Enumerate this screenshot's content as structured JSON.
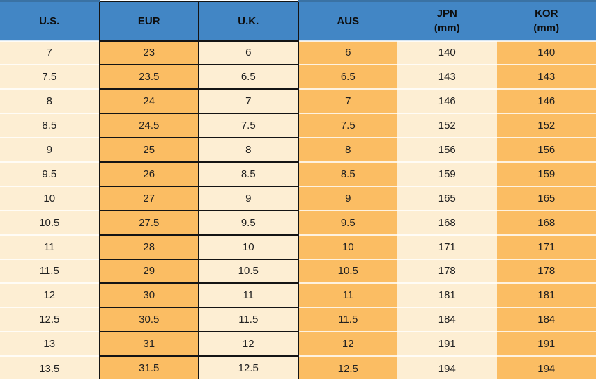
{
  "colors": {
    "header_bg": "#4286c5",
    "header_top_edge": "#3a72a4",
    "cell_cream": "#fdeed3",
    "cell_orange": "#fbbd63",
    "cell_border_black": "#141414",
    "row_separator": "#f8f1e4",
    "text": "#212121"
  },
  "table": {
    "headers": [
      {
        "label": "U.S."
      },
      {
        "label": "EUR"
      },
      {
        "label": "U.K."
      },
      {
        "label": "AUS"
      },
      {
        "label": "JPN",
        "sublabel": "(mm)"
      },
      {
        "label": "KOR",
        "sublabel": "(mm)"
      }
    ],
    "column_fills": [
      "cream",
      "orange",
      "cream",
      "orange",
      "cream",
      "orange"
    ],
    "bordered_columns": [
      1,
      2
    ],
    "rows": [
      [
        "7",
        "23",
        "6",
        "6",
        "140",
        "140"
      ],
      [
        "7.5",
        "23.5",
        "6.5",
        "6.5",
        "143",
        "143"
      ],
      [
        "8",
        "24",
        "7",
        "7",
        "146",
        "146"
      ],
      [
        "8.5",
        "24.5",
        "7.5",
        "7.5",
        "152",
        "152"
      ],
      [
        "9",
        "25",
        "8",
        "8",
        "156",
        "156"
      ],
      [
        "9.5",
        "26",
        "8.5",
        "8.5",
        "159",
        "159"
      ],
      [
        "10",
        "27",
        "9",
        "9",
        "165",
        "165"
      ],
      [
        "10.5",
        "27.5",
        "9.5",
        "9.5",
        "168",
        "168"
      ],
      [
        "11",
        "28",
        "10",
        "10",
        "171",
        "171"
      ],
      [
        "11.5",
        "29",
        "10.5",
        "10.5",
        "178",
        "178"
      ],
      [
        "12",
        "30",
        "11",
        "11",
        "181",
        "181"
      ],
      [
        "12.5",
        "30.5",
        "11.5",
        "11.5",
        "184",
        "184"
      ],
      [
        "13",
        "31",
        "12",
        "12",
        "191",
        "191"
      ],
      [
        "13.5",
        "31.5",
        "12.5",
        "12.5",
        "194",
        "194"
      ]
    ]
  },
  "chart_data": {
    "type": "table",
    "title": "Shoe size conversion table",
    "columns": [
      "U.S.",
      "EUR",
      "U.K.",
      "AUS",
      "JPN (mm)",
      "KOR (mm)"
    ],
    "rows": [
      [
        "7",
        "23",
        "6",
        "6",
        "140",
        "140"
      ],
      [
        "7.5",
        "23.5",
        "6.5",
        "6.5",
        "143",
        "143"
      ],
      [
        "8",
        "24",
        "7",
        "7",
        "146",
        "146"
      ],
      [
        "8.5",
        "24.5",
        "7.5",
        "7.5",
        "152",
        "152"
      ],
      [
        "9",
        "25",
        "8",
        "8",
        "156",
        "156"
      ],
      [
        "9.5",
        "26",
        "8.5",
        "8.5",
        "159",
        "159"
      ],
      [
        "10",
        "27",
        "9",
        "9",
        "165",
        "165"
      ],
      [
        "10.5",
        "27.5",
        "9.5",
        "9.5",
        "168",
        "168"
      ],
      [
        "11",
        "28",
        "10",
        "10",
        "171",
        "171"
      ],
      [
        "11.5",
        "29",
        "10.5",
        "10.5",
        "178",
        "178"
      ],
      [
        "12",
        "30",
        "11",
        "11",
        "181",
        "181"
      ],
      [
        "12.5",
        "30.5",
        "11.5",
        "11.5",
        "184",
        "184"
      ],
      [
        "13",
        "31",
        "12",
        "12",
        "191",
        "191"
      ],
      [
        "13.5",
        "31.5",
        "12.5",
        "12.5",
        "194",
        "194"
      ]
    ]
  }
}
